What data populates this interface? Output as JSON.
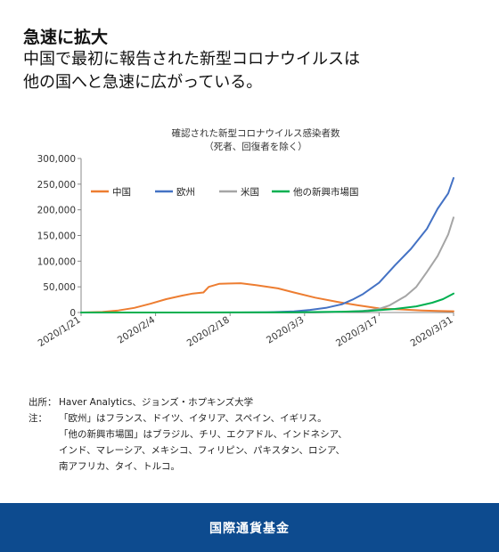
{
  "headline": {
    "title": "急速に拡大",
    "subtitle_line1": "中国で最初に報告された新型コロナウイルスは",
    "subtitle_line2": "他の国へと急速に広がっている。"
  },
  "chart_data": {
    "type": "line",
    "title": "確認された新型コロナウイルス感染者数",
    "subtitle": "（死者、回復者を除く）",
    "x_tick_labels": [
      "2020/1/21",
      "2020/2/4",
      "2020/2/18",
      "2020/3/3",
      "2020/3/17",
      "2020/3/31"
    ],
    "y_tick_labels": [
      "0",
      "50,000",
      "100,000",
      "150,000",
      "200,000",
      "250,000",
      "300,000"
    ],
    "ylim": [
      0,
      300000
    ],
    "grid": false,
    "legend_position": "top-left",
    "series": [
      {
        "name": "中国",
        "color": "#ed7d31",
        "points": [
          [
            "2020-01-21",
            0
          ],
          [
            "2020-01-25",
            1000
          ],
          [
            "2020-01-28",
            4000
          ],
          [
            "2020-01-31",
            9000
          ],
          [
            "2020-02-03",
            17000
          ],
          [
            "2020-02-06",
            26000
          ],
          [
            "2020-02-09",
            33000
          ],
          [
            "2020-02-11",
            37000
          ],
          [
            "2020-02-13",
            39000
          ],
          [
            "2020-02-14",
            50000
          ],
          [
            "2020-02-16",
            56000
          ],
          [
            "2020-02-20",
            57000
          ],
          [
            "2020-02-23",
            53000
          ],
          [
            "2020-02-27",
            47000
          ],
          [
            "2020-03-01",
            39000
          ],
          [
            "2020-03-05",
            29000
          ],
          [
            "2020-03-09",
            21000
          ],
          [
            "2020-03-13",
            14000
          ],
          [
            "2020-03-17",
            8000
          ],
          [
            "2020-03-21",
            6000
          ],
          [
            "2020-03-25",
            4000
          ],
          [
            "2020-03-28",
            3000
          ],
          [
            "2020-03-31",
            2500
          ]
        ]
      },
      {
        "name": "欧州",
        "color": "#4472c4",
        "points": [
          [
            "2020-01-21",
            0
          ],
          [
            "2020-02-20",
            0
          ],
          [
            "2020-02-25",
            500
          ],
          [
            "2020-03-01",
            2000
          ],
          [
            "2020-03-04",
            5000
          ],
          [
            "2020-03-07",
            9000
          ],
          [
            "2020-03-10",
            16000
          ],
          [
            "2020-03-12",
            25000
          ],
          [
            "2020-03-14",
            36000
          ],
          [
            "2020-03-17",
            58000
          ],
          [
            "2020-03-20",
            92000
          ],
          [
            "2020-03-23",
            124000
          ],
          [
            "2020-03-26",
            163000
          ],
          [
            "2020-03-28",
            202000
          ],
          [
            "2020-03-30",
            232000
          ],
          [
            "2020-03-31",
            262000
          ]
        ]
      },
      {
        "name": "米国",
        "color": "#a5a5a5",
        "points": [
          [
            "2020-01-21",
            0
          ],
          [
            "2020-03-05",
            0
          ],
          [
            "2020-03-10",
            1000
          ],
          [
            "2020-03-14",
            3000
          ],
          [
            "2020-03-17",
            7000
          ],
          [
            "2020-03-19",
            14000
          ],
          [
            "2020-03-22",
            32000
          ],
          [
            "2020-03-24",
            50000
          ],
          [
            "2020-03-26",
            79000
          ],
          [
            "2020-03-28",
            110000
          ],
          [
            "2020-03-30",
            152000
          ],
          [
            "2020-03-31",
            185000
          ]
        ]
      },
      {
        "name": "他の新興市場国",
        "color": "#00b050",
        "points": [
          [
            "2020-01-21",
            0
          ],
          [
            "2020-02-10",
            0
          ],
          [
            "2020-03-01",
            500
          ],
          [
            "2020-03-10",
            1500
          ],
          [
            "2020-03-15",
            3000
          ],
          [
            "2020-03-20",
            7000
          ],
          [
            "2020-03-24",
            12000
          ],
          [
            "2020-03-27",
            19000
          ],
          [
            "2020-03-29",
            26000
          ],
          [
            "2020-03-31",
            37000
          ]
        ]
      }
    ]
  },
  "notes": [
    {
      "key": "出所：",
      "text": "Haver Analytics、ジョンズ・ホプキンズ大学"
    },
    {
      "key": "注：",
      "text": "「欧州」はフランス、ドイツ、イタリア、スペイン、イギリス。"
    },
    {
      "key": "",
      "text": "「他の新興市場国」はブラジル、チリ、エクアドル、インドネシア、"
    },
    {
      "key": "",
      "text": "インド、マレーシア、メキシコ、フィリピン、パキスタン、ロシア、"
    },
    {
      "key": "",
      "text": "南アフリカ、タイ、トルコ。"
    }
  ],
  "footer": {
    "label": "国際通貨基金"
  }
}
